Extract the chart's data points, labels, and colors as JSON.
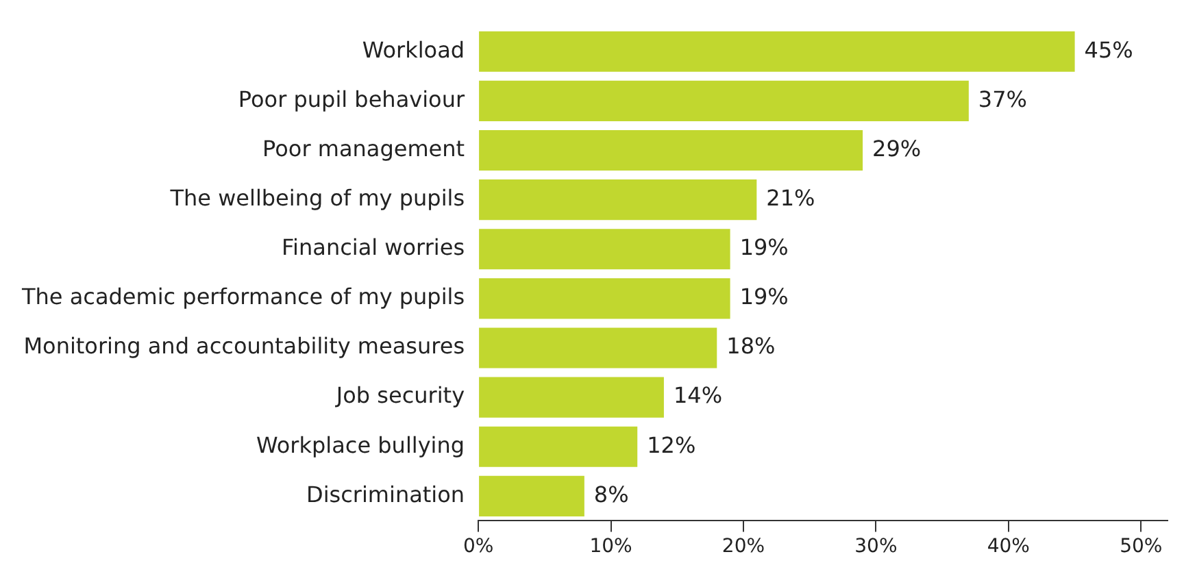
{
  "chart_data": {
    "type": "bar",
    "orientation": "horizontal",
    "categories": [
      "Workload",
      "Poor pupil behaviour",
      "Poor management",
      "The wellbeing of my pupils",
      "Financial worries",
      "The academic performance of my pupils",
      "Monitoring and accountability measures",
      "Job security",
      "Workplace bullying",
      "Discrimination"
    ],
    "values": [
      45,
      37,
      29,
      21,
      19,
      19,
      18,
      14,
      12,
      8
    ],
    "value_labels": [
      "45%",
      "37%",
      "29%",
      "21%",
      "19%",
      "19%",
      "18%",
      "14%",
      "12%",
      "8%"
    ],
    "color": "#c1d72f",
    "xlim": [
      0,
      52
    ],
    "xticks": [
      {
        "value": 0,
        "label": "0%"
      },
      {
        "value": 10,
        "label": "10%"
      },
      {
        "value": 20,
        "label": "20%"
      },
      {
        "value": 30,
        "label": "30%"
      },
      {
        "value": 40,
        "label": "40%"
      },
      {
        "value": 50,
        "label": "50%"
      }
    ],
    "grid": false,
    "legend": false
  }
}
